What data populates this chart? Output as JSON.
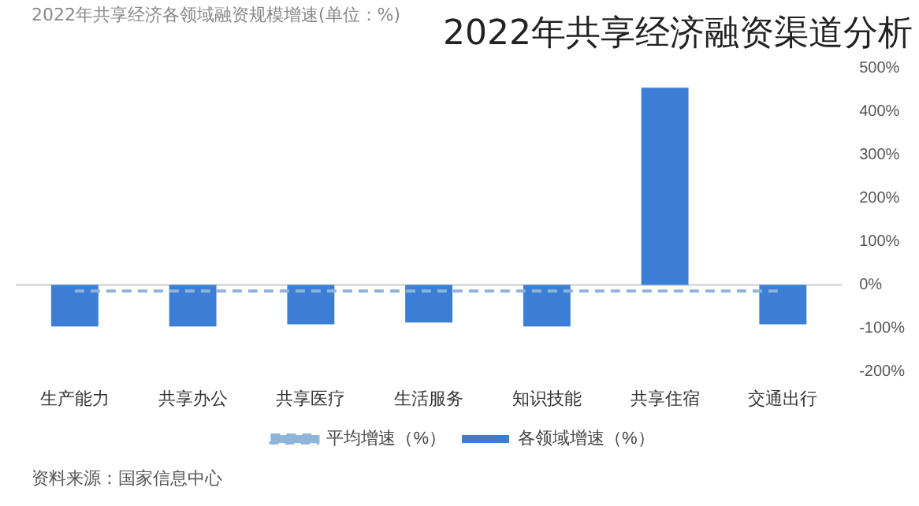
{
  "chart_data": {
    "type": "bar",
    "title": "2022年共享经济融资渠道分析",
    "subtitle": "2022年共享经济各领域融资规模增速(单位：%)",
    "categories": [
      "生产能力",
      "共享办公",
      "共享医疗",
      "生活服务",
      "知识技能",
      "共享住宿",
      "交通出行"
    ],
    "series": [
      {
        "name": "各领域增速（%）",
        "color": "#3a7fd5",
        "values": [
          -96,
          -96,
          -91,
          -87,
          -96,
          454,
          -91
        ]
      },
      {
        "name": "平均增速（%）",
        "type": "line",
        "color": "#8fb4d9",
        "line_style": "dashed",
        "values": [
          -14,
          -14,
          -14,
          -14,
          -14,
          -14,
          -14
        ]
      }
    ],
    "ylim": [
      -200,
      500
    ],
    "yticks": [
      {
        "value": -200,
        "label": "-200%"
      },
      {
        "value": -100,
        "label": "-100%"
      },
      {
        "value": 0,
        "label": "0%"
      },
      {
        "value": 100,
        "label": "100%"
      },
      {
        "value": 200,
        "label": "200%"
      },
      {
        "value": 300,
        "label": "300%"
      },
      {
        "value": 400,
        "label": "400%"
      },
      {
        "value": 500,
        "label": "500%"
      }
    ],
    "grid": false,
    "legend": "bottom",
    "marker": "none",
    "ref_lines": [
      {
        "axis": "y",
        "value": 0,
        "color": "#cccccc"
      }
    ],
    "annotations": [
      "资料来源：国家信息中心"
    ]
  }
}
